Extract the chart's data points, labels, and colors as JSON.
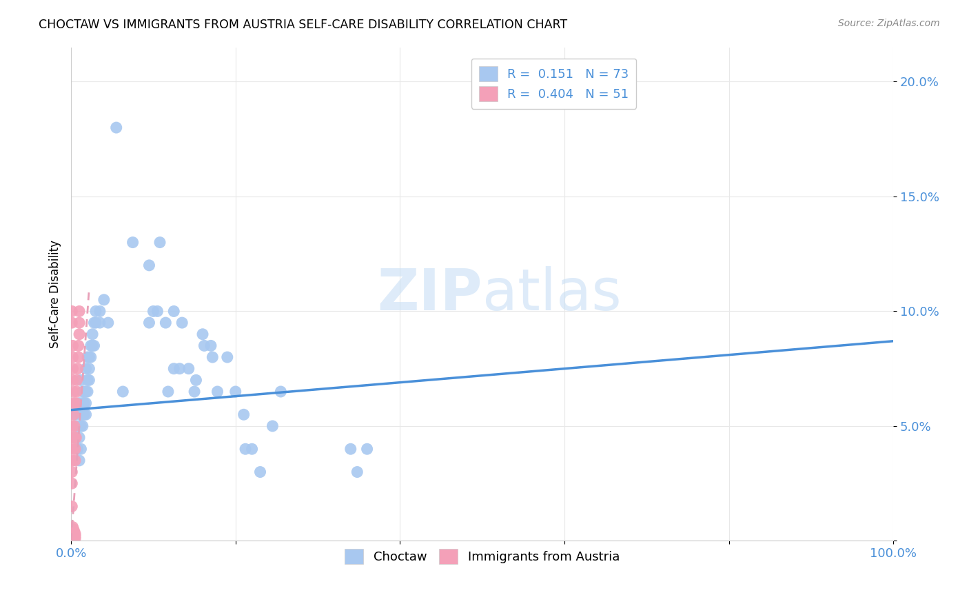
{
  "title": "CHOCTAW VS IMMIGRANTS FROM AUSTRIA SELF-CARE DISABILITY CORRELATION CHART",
  "source": "Source: ZipAtlas.com",
  "ylabel": "Self-Care Disability",
  "yticks": [
    0.0,
    0.05,
    0.1,
    0.15,
    0.2
  ],
  "ytick_labels": [
    "",
    "5.0%",
    "10.0%",
    "15.0%",
    "20.0%"
  ],
  "xtick_labels": [
    "0.0%",
    "",
    "",
    "",
    "",
    "100.0%"
  ],
  "xticks": [
    0.0,
    0.2,
    0.4,
    0.6,
    0.8,
    1.0
  ],
  "xlim": [
    0.0,
    1.0
  ],
  "ylim": [
    0.0,
    0.215
  ],
  "legend1_r": "0.151",
  "legend1_n": "73",
  "legend2_r": "0.404",
  "legend2_n": "51",
  "choctaw_color": "#a8c8f0",
  "austria_color": "#f4a0b8",
  "trendline_choctaw_color": "#4a90d9",
  "trendline_austria_color": "#e8a0b8",
  "label_color": "#4a90d9",
  "watermark_color": "#d0e8f8",
  "background_color": "#ffffff",
  "grid_color": "#e8e8e8",
  "choctaw_points": [
    [
      0.005,
      0.055
    ],
    [
      0.005,
      0.045
    ],
    [
      0.008,
      0.05
    ],
    [
      0.008,
      0.04
    ],
    [
      0.01,
      0.06
    ],
    [
      0.01,
      0.045
    ],
    [
      0.01,
      0.035
    ],
    [
      0.012,
      0.07
    ],
    [
      0.012,
      0.055
    ],
    [
      0.012,
      0.05
    ],
    [
      0.012,
      0.04
    ],
    [
      0.014,
      0.065
    ],
    [
      0.014,
      0.06
    ],
    [
      0.014,
      0.055
    ],
    [
      0.014,
      0.05
    ],
    [
      0.016,
      0.065
    ],
    [
      0.016,
      0.06
    ],
    [
      0.016,
      0.055
    ],
    [
      0.018,
      0.075
    ],
    [
      0.018,
      0.065
    ],
    [
      0.018,
      0.06
    ],
    [
      0.018,
      0.055
    ],
    [
      0.02,
      0.08
    ],
    [
      0.02,
      0.07
    ],
    [
      0.02,
      0.065
    ],
    [
      0.022,
      0.08
    ],
    [
      0.022,
      0.075
    ],
    [
      0.022,
      0.07
    ],
    [
      0.024,
      0.085
    ],
    [
      0.024,
      0.08
    ],
    [
      0.026,
      0.09
    ],
    [
      0.026,
      0.085
    ],
    [
      0.028,
      0.095
    ],
    [
      0.028,
      0.085
    ],
    [
      0.03,
      0.1
    ],
    [
      0.03,
      0.095
    ],
    [
      0.035,
      0.1
    ],
    [
      0.035,
      0.095
    ],
    [
      0.04,
      0.105
    ],
    [
      0.045,
      0.095
    ],
    [
      0.055,
      0.18
    ],
    [
      0.075,
      0.13
    ],
    [
      0.095,
      0.12
    ],
    [
      0.105,
      0.1
    ],
    [
      0.115,
      0.095
    ],
    [
      0.125,
      0.1
    ],
    [
      0.135,
      0.095
    ],
    [
      0.15,
      0.065
    ],
    [
      0.16,
      0.09
    ],
    [
      0.162,
      0.085
    ],
    [
      0.17,
      0.085
    ],
    [
      0.172,
      0.08
    ],
    [
      0.178,
      0.065
    ],
    [
      0.19,
      0.08
    ],
    [
      0.2,
      0.065
    ],
    [
      0.21,
      0.055
    ],
    [
      0.212,
      0.04
    ],
    [
      0.22,
      0.04
    ],
    [
      0.23,
      0.03
    ],
    [
      0.245,
      0.05
    ],
    [
      0.255,
      0.065
    ],
    [
      0.095,
      0.095
    ],
    [
      0.1,
      0.1
    ],
    [
      0.108,
      0.13
    ],
    [
      0.125,
      0.075
    ],
    [
      0.132,
      0.075
    ],
    [
      0.143,
      0.075
    ],
    [
      0.152,
      0.07
    ],
    [
      0.34,
      0.04
    ],
    [
      0.36,
      0.04
    ],
    [
      0.348,
      0.03
    ],
    [
      0.118,
      0.065
    ],
    [
      0.063,
      0.065
    ]
  ],
  "austria_points": [
    [
      0.001,
      0.001
    ],
    [
      0.001,
      0.002
    ],
    [
      0.001,
      0.003
    ],
    [
      0.002,
      0.001
    ],
    [
      0.002,
      0.002
    ],
    [
      0.002,
      0.003
    ],
    [
      0.002,
      0.004
    ],
    [
      0.002,
      0.005
    ],
    [
      0.002,
      0.006
    ],
    [
      0.003,
      0.001
    ],
    [
      0.003,
      0.002
    ],
    [
      0.003,
      0.003
    ],
    [
      0.003,
      0.004
    ],
    [
      0.003,
      0.005
    ],
    [
      0.004,
      0.001
    ],
    [
      0.004,
      0.002
    ],
    [
      0.004,
      0.003
    ],
    [
      0.004,
      0.004
    ],
    [
      0.005,
      0.001
    ],
    [
      0.005,
      0.002
    ],
    [
      0.005,
      0.003
    ],
    [
      0.005,
      0.035
    ],
    [
      0.005,
      0.04
    ],
    [
      0.006,
      0.045
    ],
    [
      0.006,
      0.06
    ],
    [
      0.007,
      0.065
    ],
    [
      0.007,
      0.07
    ],
    [
      0.008,
      0.075
    ],
    [
      0.009,
      0.08
    ],
    [
      0.009,
      0.085
    ],
    [
      0.01,
      0.09
    ],
    [
      0.01,
      0.095
    ],
    [
      0.01,
      0.1
    ],
    [
      0.001,
      0.095
    ],
    [
      0.001,
      0.1
    ],
    [
      0.002,
      0.07
    ],
    [
      0.002,
      0.075
    ],
    [
      0.002,
      0.08
    ],
    [
      0.002,
      0.085
    ],
    [
      0.003,
      0.055
    ],
    [
      0.003,
      0.06
    ],
    [
      0.003,
      0.065
    ],
    [
      0.004,
      0.045
    ],
    [
      0.004,
      0.05
    ],
    [
      0.001,
      0.045
    ],
    [
      0.001,
      0.05
    ],
    [
      0.002,
      0.035
    ],
    [
      0.002,
      0.04
    ],
    [
      0.001,
      0.025
    ],
    [
      0.001,
      0.03
    ],
    [
      0.001,
      0.015
    ]
  ],
  "choctaw_trend_x": [
    0.0,
    1.0
  ],
  "choctaw_trend_y": [
    0.057,
    0.087
  ],
  "austria_trend_x": [
    0.0,
    0.022
  ],
  "austria_trend_y": [
    0.0,
    0.11
  ]
}
